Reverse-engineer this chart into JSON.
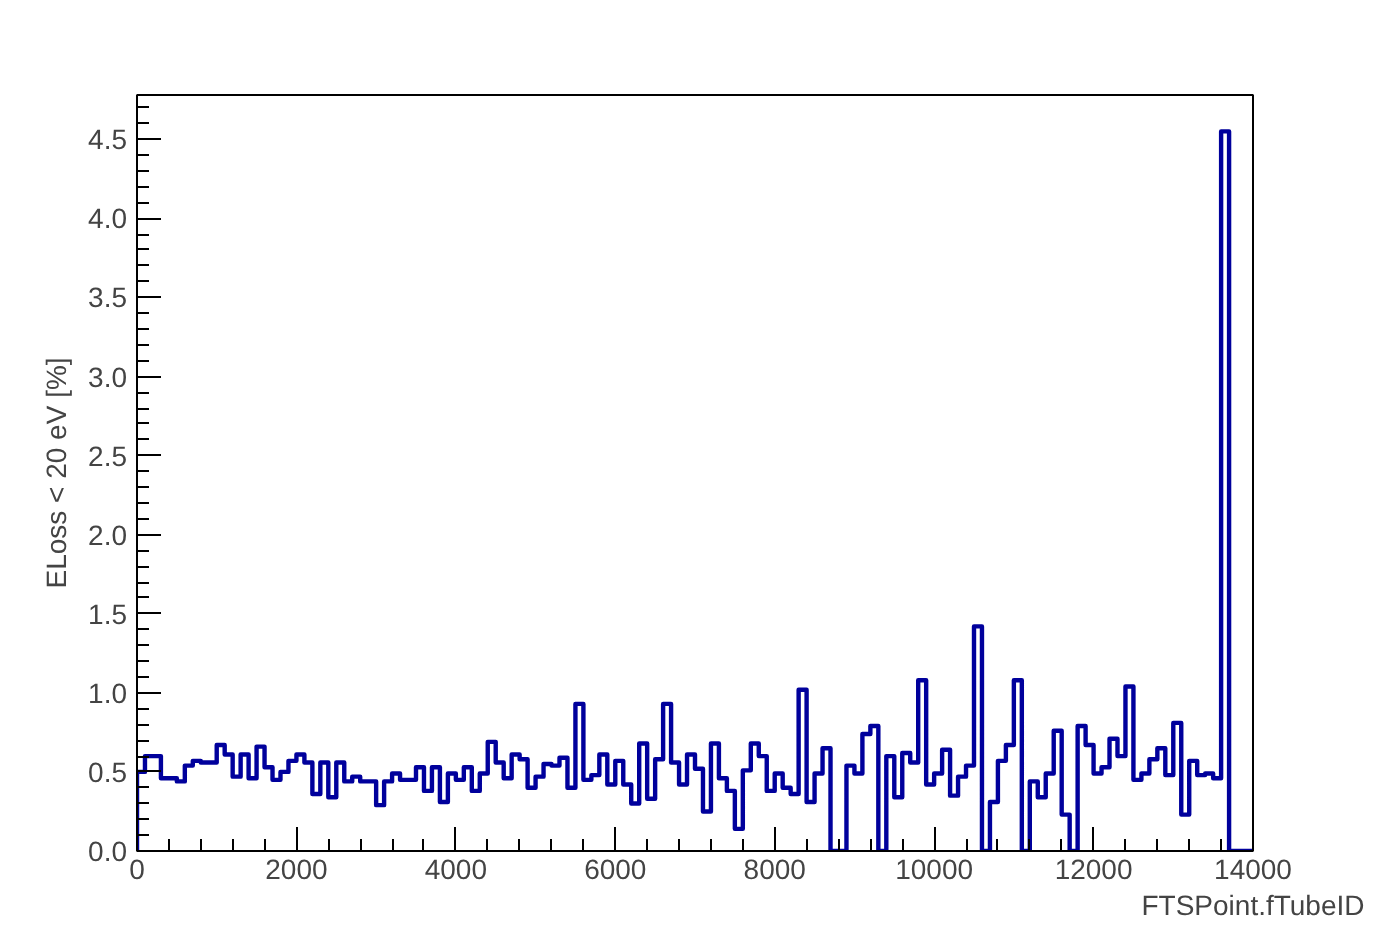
{
  "chart_data": {
    "type": "histogram",
    "xlabel": "FTSPoint.fTubeID",
    "ylabel": "ELoss < 20 eV [%]",
    "bins": [
      0,
      100,
      200,
      300,
      400,
      500,
      600,
      700,
      800,
      900,
      1000,
      1100,
      1200,
      1300,
      1400,
      1500,
      1600,
      1700,
      1800,
      1900,
      2000,
      2100,
      2200,
      2300,
      2400,
      2500,
      2600,
      2700,
      2800,
      2900,
      3000,
      3100,
      3200,
      3300,
      3400,
      3500,
      3600,
      3700,
      3800,
      3900,
      4000,
      4100,
      4200,
      4300,
      4400,
      4500,
      4600,
      4700,
      4800,
      4900,
      5000,
      5100,
      5200,
      5300,
      5400,
      5500,
      5600,
      5700,
      5800,
      5900,
      6000,
      6100,
      6200,
      6300,
      6400,
      6500,
      6600,
      6700,
      6800,
      6900,
      7000,
      7100,
      7200,
      7300,
      7400,
      7500,
      7600,
      7700,
      7800,
      7900,
      8000,
      8100,
      8200,
      8300,
      8400,
      8500,
      8600,
      8700,
      8800,
      8900,
      9000,
      9100,
      9200,
      9300,
      9400,
      9500,
      9600,
      9700,
      9800,
      9900,
      10000,
      10100,
      10200,
      10300,
      10400,
      10500,
      10600,
      10700,
      10800,
      10900,
      11000,
      11100,
      11200,
      11300,
      11400,
      11500,
      11600,
      11700,
      11800,
      11900,
      12000,
      12100,
      12200,
      12300,
      12400,
      12500,
      12600,
      12700,
      12800,
      12900,
      13000,
      13100,
      13200,
      13300,
      13400,
      13500,
      13600,
      13700,
      13800,
      13900,
      14000
    ],
    "values": [
      0.5,
      0.6,
      0.6,
      0.46,
      0.46,
      0.44,
      0.54,
      0.57,
      0.56,
      0.56,
      0.67,
      0.61,
      0.47,
      0.61,
      0.46,
      0.66,
      0.53,
      0.45,
      0.5,
      0.57,
      0.61,
      0.56,
      0.36,
      0.56,
      0.34,
      0.56,
      0.44,
      0.47,
      0.44,
      0.44,
      0.29,
      0.44,
      0.49,
      0.45,
      0.45,
      0.53,
      0.38,
      0.53,
      0.31,
      0.49,
      0.45,
      0.53,
      0.38,
      0.49,
      0.69,
      0.56,
      0.46,
      0.61,
      0.58,
      0.4,
      0.47,
      0.55,
      0.54,
      0.59,
      0.4,
      0.93,
      0.45,
      0.48,
      0.61,
      0.42,
      0.57,
      0.42,
      0.3,
      0.68,
      0.33,
      0.58,
      0.93,
      0.56,
      0.42,
      0.61,
      0.52,
      0.25,
      0.68,
      0.46,
      0.38,
      0.14,
      0.51,
      0.68,
      0.6,
      0.38,
      0.49,
      0.4,
      0.36,
      1.02,
      0.31,
      0.49,
      0.65,
      0,
      0,
      0.54,
      0.49,
      0.74,
      0.79,
      0,
      0.6,
      0.34,
      0.62,
      0.56,
      1.08,
      0.42,
      0.49,
      0.64,
      0.35,
      0.47,
      0.54,
      1.42,
      0,
      0.31,
      0.57,
      0.67,
      1.08,
      0,
      0.44,
      0.34,
      0.49,
      0.76,
      0.23,
      0,
      0.79,
      0.67,
      0.49,
      0.53,
      0.71,
      0.6,
      1.04,
      0.45,
      0.49,
      0.58,
      0.65,
      0.48,
      0.81,
      0.23,
      0.57,
      0.48,
      0.49,
      0.46,
      4.55,
      0,
      0,
      0
    ],
    "color": "#00009c",
    "xlim": [
      0,
      14000
    ],
    "ylim": [
      0,
      4.78
    ],
    "xticks": [
      0,
      2000,
      4000,
      6000,
      8000,
      10000,
      12000,
      14000
    ],
    "yticks": [
      {
        "value": 0,
        "label": "0.0"
      },
      {
        "value": 0.5,
        "label": "0.5"
      },
      {
        "value": 1,
        "label": "1.0"
      },
      {
        "value": 1.5,
        "label": "1.5"
      },
      {
        "value": 2,
        "label": "2.0"
      },
      {
        "value": 2.5,
        "label": "2.5"
      },
      {
        "value": 3,
        "label": "3.0"
      },
      {
        "value": 3.5,
        "label": "3.5"
      },
      {
        "value": 4,
        "label": "4.0"
      },
      {
        "value": 4.5,
        "label": "4.5"
      }
    ],
    "grid": false
  }
}
